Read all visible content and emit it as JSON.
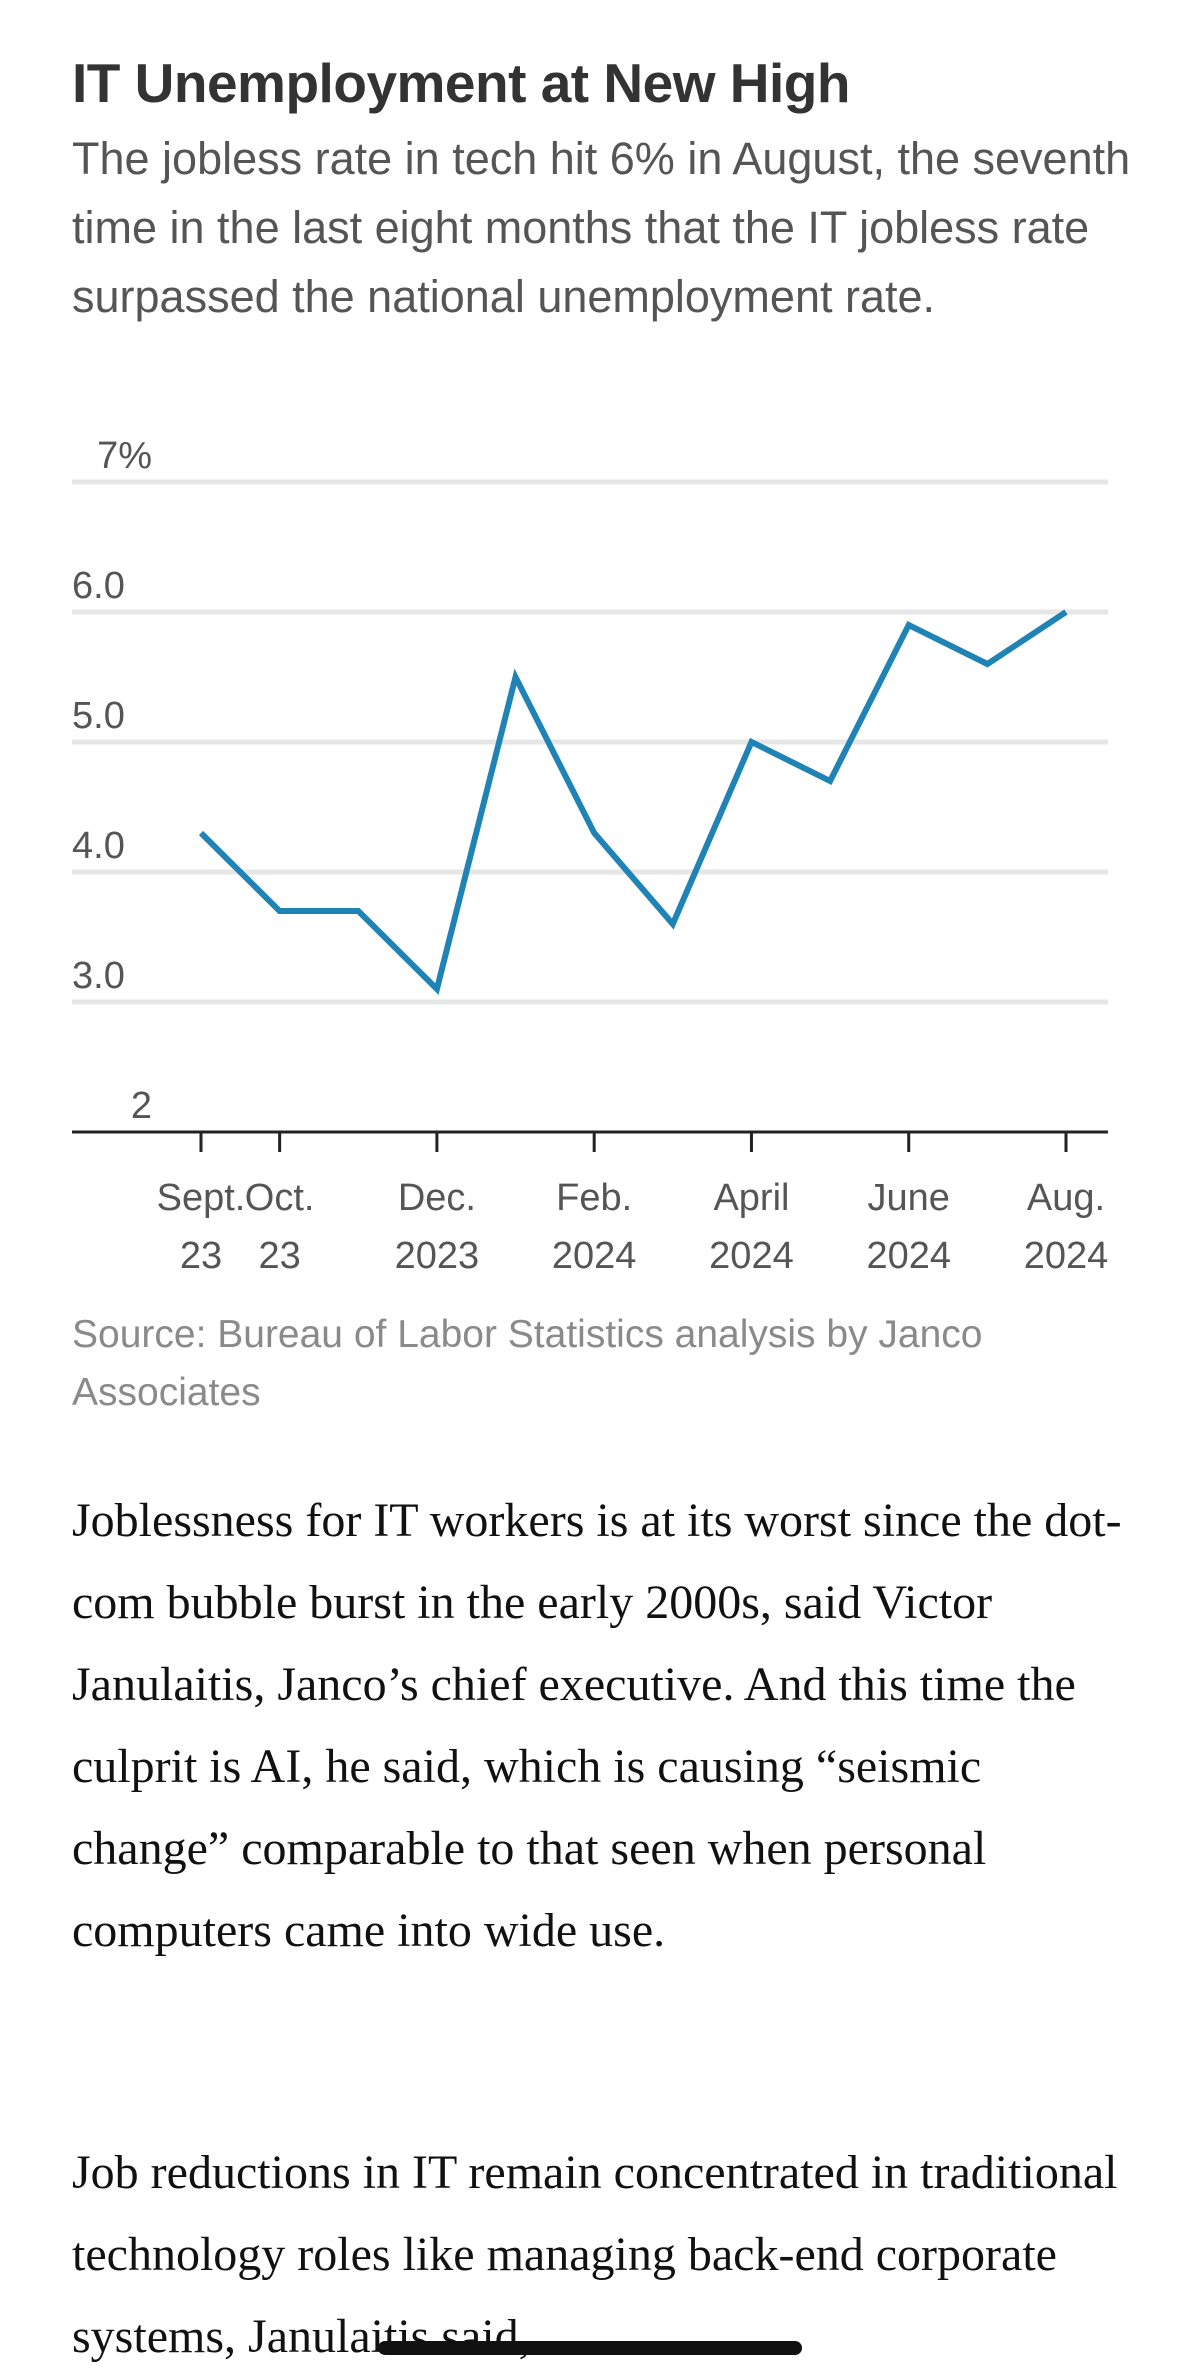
{
  "chart_data": {
    "type": "line",
    "title": "IT Unemployment at New High",
    "subtitle": "The jobless rate in tech hit 6% in August, the seventh time in the last eight months that the IT jobless rate surpassed the national unemployment rate.",
    "source": "Source: Bureau of Labor Statistics analysis by Janco Associates",
    "ylim": [
      2,
      7
    ],
    "y_ticks": [
      {
        "value": 7,
        "label": "7%"
      },
      {
        "value": 6,
        "label": "6.0"
      },
      {
        "value": 5,
        "label": "5.0"
      },
      {
        "value": 4,
        "label": "4.0"
      },
      {
        "value": 3,
        "label": "3.0"
      },
      {
        "value": 2,
        "label": "2"
      }
    ],
    "x_ticks": [
      {
        "index": 0,
        "line1": "Sept.",
        "line2": "23"
      },
      {
        "index": 1,
        "line1": "Oct.",
        "line2": "23"
      },
      {
        "index": 3,
        "line1": "Dec.",
        "line2": "2023"
      },
      {
        "index": 5,
        "line1": "Feb.",
        "line2": "2024"
      },
      {
        "index": 7,
        "line1": "April",
        "line2": "2024"
      },
      {
        "index": 9,
        "line1": "June",
        "line2": "2024"
      },
      {
        "index": 11,
        "line1": "Aug.",
        "line2": "2024"
      }
    ],
    "x": [
      "Sept. 2023",
      "Oct. 2023",
      "Nov. 2023",
      "Dec. 2023",
      "Jan. 2024",
      "Feb. 2024",
      "Mar. 2024",
      "April 2024",
      "May 2024",
      "June 2024",
      "July 2024",
      "Aug. 2024"
    ],
    "series": [
      {
        "name": "IT unemployment rate",
        "values": [
          4.3,
          3.7,
          3.7,
          3.1,
          5.5,
          4.3,
          3.6,
          5.0,
          4.7,
          5.9,
          5.6,
          6.0
        ]
      }
    ],
    "grid": true,
    "line_color": "#1f83b5",
    "grid_color": "#e6e6e6",
    "axis_color": "#222222"
  },
  "article": {
    "paragraphs": [
      "Joblessness for IT workers is at its worst since the dot-com bubble burst in the early 2000s, said Victor Janulaitis, Janco’s chief executive. And this time the culprit is AI, he said, which is causing “seismic change” comparable to that seen when personal computers came into wide use.",
      "Job reductions in IT remain concentrated in traditional technology roles like managing back-end corporate systems, Janulaitis said,"
    ]
  }
}
